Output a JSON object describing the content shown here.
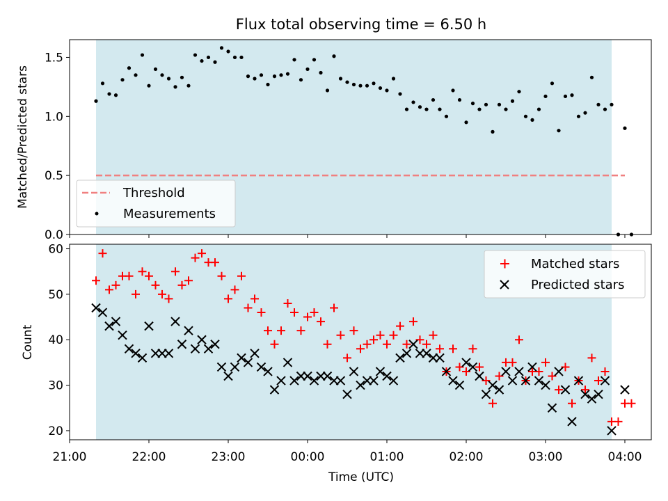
{
  "chart_data": [
    {
      "type": "scatter",
      "title": "Flux total observing time = 6.50 h",
      "xlabel": "",
      "ylabel": "Matched/Predicted stars",
      "xlim": [
        "21:00",
        "04:20"
      ],
      "ylim": [
        0,
        1.65
      ],
      "y_ticks": [
        "0.0",
        "0.5",
        "1.0",
        "1.5"
      ],
      "shaded_interval": {
        "start": "21:20",
        "end": "03:50",
        "color": "#d3e9ef"
      },
      "legend_position": "lower-left",
      "series": [
        {
          "name": "Threshold",
          "kind": "dashed-line",
          "color": "#f08080",
          "points": [
            [
              "21:20",
              0.5
            ],
            [
              "04:00",
              0.5
            ]
          ]
        },
        {
          "name": "Measurements",
          "kind": "dot",
          "color": "#000000",
          "points": [
            [
              "21:20",
              1.13
            ],
            [
              "21:25",
              1.28
            ],
            [
              "21:30",
              1.19
            ],
            [
              "21:35",
              1.18
            ],
            [
              "21:40",
              1.31
            ],
            [
              "21:45",
              1.41
            ],
            [
              "21:50",
              1.35
            ],
            [
              "21:55",
              1.52
            ],
            [
              "22:00",
              1.26
            ],
            [
              "22:05",
              1.4
            ],
            [
              "22:10",
              1.35
            ],
            [
              "22:15",
              1.32
            ],
            [
              "22:20",
              1.25
            ],
            [
              "22:25",
              1.33
            ],
            [
              "22:30",
              1.26
            ],
            [
              "22:35",
              1.52
            ],
            [
              "22:40",
              1.47
            ],
            [
              "22:45",
              1.5
            ],
            [
              "22:50",
              1.46
            ],
            [
              "22:55",
              1.58
            ],
            [
              "23:00",
              1.55
            ],
            [
              "23:05",
              1.5
            ],
            [
              "23:10",
              1.5
            ],
            [
              "23:15",
              1.34
            ],
            [
              "23:20",
              1.32
            ],
            [
              "23:25",
              1.35
            ],
            [
              "23:30",
              1.27
            ],
            [
              "23:35",
              1.34
            ],
            [
              "23:40",
              1.35
            ],
            [
              "23:45",
              1.36
            ],
            [
              "23:50",
              1.48
            ],
            [
              "23:55",
              1.31
            ],
            [
              "00:00",
              1.4
            ],
            [
              "00:05",
              1.48
            ],
            [
              "00:10",
              1.37
            ],
            [
              "00:15",
              1.22
            ],
            [
              "00:20",
              1.51
            ],
            [
              "00:25",
              1.32
            ],
            [
              "00:30",
              1.29
            ],
            [
              "00:35",
              1.27
            ],
            [
              "00:40",
              1.26
            ],
            [
              "00:45",
              1.26
            ],
            [
              "00:50",
              1.28
            ],
            [
              "00:55",
              1.24
            ],
            [
              "01:00",
              1.22
            ],
            [
              "01:05",
              1.32
            ],
            [
              "01:10",
              1.19
            ],
            [
              "01:15",
              1.06
            ],
            [
              "01:20",
              1.12
            ],
            [
              "01:25",
              1.08
            ],
            [
              "01:30",
              1.06
            ],
            [
              "01:35",
              1.14
            ],
            [
              "01:40",
              1.06
            ],
            [
              "01:45",
              1.0
            ],
            [
              "01:50",
              1.22
            ],
            [
              "01:55",
              1.14
            ],
            [
              "02:00",
              0.95
            ],
            [
              "02:05",
              1.11
            ],
            [
              "02:10",
              1.06
            ],
            [
              "02:15",
              1.1
            ],
            [
              "02:20",
              0.87
            ],
            [
              "02:25",
              1.1
            ],
            [
              "02:30",
              1.06
            ],
            [
              "02:35",
              1.13
            ],
            [
              "02:40",
              1.21
            ],
            [
              "02:45",
              1.0
            ],
            [
              "02:50",
              0.97
            ],
            [
              "02:55",
              1.06
            ],
            [
              "03:00",
              1.17
            ],
            [
              "03:05",
              1.28
            ],
            [
              "03:10",
              0.88
            ],
            [
              "03:15",
              1.17
            ],
            [
              "03:20",
              1.18
            ],
            [
              "03:25",
              1.0
            ],
            [
              "03:30",
              1.03
            ],
            [
              "03:35",
              1.33
            ],
            [
              "03:40",
              1.1
            ],
            [
              "03:45",
              1.06
            ],
            [
              "03:50",
              1.1
            ],
            [
              "04:00",
              0.9
            ],
            [
              "03:55",
              0.0
            ],
            [
              "04:05",
              0.0
            ]
          ]
        }
      ]
    },
    {
      "type": "scatter",
      "title": "",
      "xlabel": "Time (UTC)",
      "ylabel": "Count",
      "xlim": [
        "21:00",
        "04:20"
      ],
      "ylim": [
        18,
        61
      ],
      "x_ticks": [
        "21:00",
        "22:00",
        "23:00",
        "00:00",
        "01:00",
        "02:00",
        "03:00",
        "04:00"
      ],
      "y_ticks": [
        "20",
        "30",
        "40",
        "50",
        "60"
      ],
      "shaded_interval": {
        "start": "21:20",
        "end": "03:50",
        "color": "#d3e9ef"
      },
      "legend_position": "upper-right",
      "series": [
        {
          "name": "Matched stars",
          "kind": "plus",
          "color": "#ff0000",
          "points": [
            [
              "21:20",
              53
            ],
            [
              "21:25",
              59
            ],
            [
              "21:30",
              51
            ],
            [
              "21:35",
              52
            ],
            [
              "21:40",
              54
            ],
            [
              "21:45",
              54
            ],
            [
              "21:50",
              50
            ],
            [
              "21:55",
              55
            ],
            [
              "22:00",
              54
            ],
            [
              "22:05",
              52
            ],
            [
              "22:10",
              50
            ],
            [
              "22:15",
              49
            ],
            [
              "22:20",
              55
            ],
            [
              "22:25",
              52
            ],
            [
              "22:30",
              53
            ],
            [
              "22:35",
              58
            ],
            [
              "22:40",
              59
            ],
            [
              "22:45",
              57
            ],
            [
              "22:50",
              57
            ],
            [
              "22:55",
              54
            ],
            [
              "23:00",
              49
            ],
            [
              "23:05",
              51
            ],
            [
              "23:10",
              54
            ],
            [
              "23:15",
              47
            ],
            [
              "23:20",
              49
            ],
            [
              "23:25",
              46
            ],
            [
              "23:30",
              42
            ],
            [
              "23:35",
              39
            ],
            [
              "23:40",
              42
            ],
            [
              "23:45",
              48
            ],
            [
              "23:50",
              46
            ],
            [
              "23:55",
              42
            ],
            [
              "00:00",
              45
            ],
            [
              "00:05",
              46
            ],
            [
              "00:10",
              44
            ],
            [
              "00:15",
              39
            ],
            [
              "00:20",
              47
            ],
            [
              "00:25",
              41
            ],
            [
              "00:30",
              36
            ],
            [
              "00:35",
              42
            ],
            [
              "00:40",
              38
            ],
            [
              "00:45",
              39
            ],
            [
              "00:50",
              40
            ],
            [
              "00:55",
              41
            ],
            [
              "01:00",
              39
            ],
            [
              "01:05",
              41
            ],
            [
              "01:10",
              43
            ],
            [
              "01:15",
              39
            ],
            [
              "01:20",
              44
            ],
            [
              "01:25",
              40
            ],
            [
              "01:30",
              39
            ],
            [
              "01:35",
              41
            ],
            [
              "01:40",
              38
            ],
            [
              "01:45",
              33
            ],
            [
              "01:50",
              38
            ],
            [
              "01:55",
              34
            ],
            [
              "02:00",
              33
            ],
            [
              "02:05",
              38
            ],
            [
              "02:10",
              34
            ],
            [
              "02:15",
              31
            ],
            [
              "02:20",
              26
            ],
            [
              "02:25",
              32
            ],
            [
              "02:30",
              35
            ],
            [
              "02:35",
              35
            ],
            [
              "02:40",
              40
            ],
            [
              "02:45",
              31
            ],
            [
              "02:50",
              33
            ],
            [
              "02:55",
              33
            ],
            [
              "03:00",
              35
            ],
            [
              "03:05",
              32
            ],
            [
              "03:10",
              29
            ],
            [
              "03:15",
              34
            ],
            [
              "03:20",
              26
            ],
            [
              "03:25",
              31
            ],
            [
              "03:30",
              29
            ],
            [
              "03:35",
              36
            ],
            [
              "03:40",
              31
            ],
            [
              "03:45",
              33
            ],
            [
              "03:50",
              22
            ],
            [
              "03:55",
              22
            ],
            [
              "04:00",
              26
            ],
            [
              "04:05",
              26
            ]
          ]
        },
        {
          "name": "Predicted stars",
          "kind": "cross",
          "color": "#000000",
          "points": [
            [
              "21:20",
              47
            ],
            [
              "21:25",
              46
            ],
            [
              "21:30",
              43
            ],
            [
              "21:35",
              44
            ],
            [
              "21:40",
              41
            ],
            [
              "21:45",
              38
            ],
            [
              "21:50",
              37
            ],
            [
              "21:55",
              36
            ],
            [
              "22:00",
              43
            ],
            [
              "22:05",
              37
            ],
            [
              "22:10",
              37
            ],
            [
              "22:15",
              37
            ],
            [
              "22:20",
              44
            ],
            [
              "22:25",
              39
            ],
            [
              "22:30",
              42
            ],
            [
              "22:35",
              38
            ],
            [
              "22:40",
              40
            ],
            [
              "22:45",
              38
            ],
            [
              "22:50",
              39
            ],
            [
              "22:55",
              34
            ],
            [
              "23:00",
              32
            ],
            [
              "23:05",
              34
            ],
            [
              "23:10",
              36
            ],
            [
              "23:15",
              35
            ],
            [
              "23:20",
              37
            ],
            [
              "23:25",
              34
            ],
            [
              "23:30",
              33
            ],
            [
              "23:35",
              29
            ],
            [
              "23:40",
              31
            ],
            [
              "23:45",
              35
            ],
            [
              "23:50",
              31
            ],
            [
              "23:55",
              32
            ],
            [
              "00:00",
              32
            ],
            [
              "00:05",
              31
            ],
            [
              "00:10",
              32
            ],
            [
              "00:15",
              32
            ],
            [
              "00:20",
              31
            ],
            [
              "00:25",
              31
            ],
            [
              "00:30",
              28
            ],
            [
              "00:35",
              33
            ],
            [
              "00:40",
              30
            ],
            [
              "00:45",
              31
            ],
            [
              "00:50",
              31
            ],
            [
              "00:55",
              33
            ],
            [
              "01:00",
              32
            ],
            [
              "01:05",
              31
            ],
            [
              "01:10",
              36
            ],
            [
              "01:15",
              37
            ],
            [
              "01:20",
              39
            ],
            [
              "01:25",
              37
            ],
            [
              "01:30",
              37
            ],
            [
              "01:35",
              36
            ],
            [
              "01:40",
              36
            ],
            [
              "01:45",
              33
            ],
            [
              "01:50",
              31
            ],
            [
              "01:55",
              30
            ],
            [
              "02:00",
              35
            ],
            [
              "02:05",
              34
            ],
            [
              "02:10",
              32
            ],
            [
              "02:15",
              28
            ],
            [
              "02:20",
              30
            ],
            [
              "02:25",
              29
            ],
            [
              "02:30",
              33
            ],
            [
              "02:35",
              31
            ],
            [
              "02:40",
              33
            ],
            [
              "02:45",
              31
            ],
            [
              "02:50",
              34
            ],
            [
              "02:55",
              31
            ],
            [
              "03:00",
              30
            ],
            [
              "03:05",
              25
            ],
            [
              "03:10",
              33
            ],
            [
              "03:15",
              29
            ],
            [
              "03:20",
              22
            ],
            [
              "03:25",
              31
            ],
            [
              "03:30",
              28
            ],
            [
              "03:35",
              27
            ],
            [
              "03:40",
              28
            ],
            [
              "03:45",
              31
            ],
            [
              "03:50",
              20
            ],
            [
              "04:00",
              29
            ]
          ]
        }
      ]
    }
  ]
}
